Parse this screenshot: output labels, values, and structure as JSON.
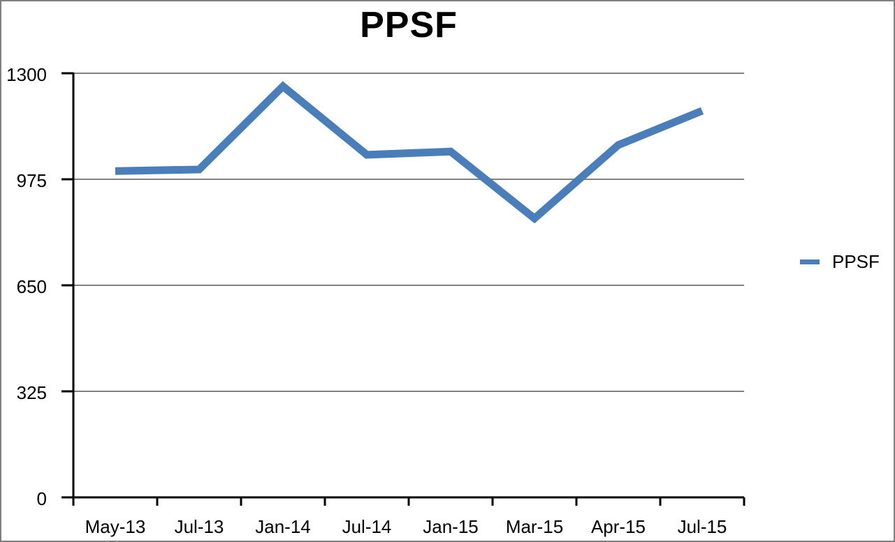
{
  "chart_data": {
    "type": "line",
    "title": "PPSF",
    "categories": [
      "May-13",
      "Jul-13",
      "Jan-14",
      "Jul-14",
      "Jan-15",
      "Mar-15",
      "Apr-15",
      "Jul-15"
    ],
    "series": [
      {
        "name": "PPSF",
        "values": [
          1000,
          1005,
          1260,
          1050,
          1060,
          855,
          1080,
          1185
        ],
        "color": "#4a7ebb"
      }
    ],
    "xlabel": "",
    "ylabel": "",
    "y_axis": {
      "min": 0,
      "max": 1300,
      "ticks": [
        0,
        325,
        650,
        975,
        1300
      ]
    },
    "grid": true,
    "legend": {
      "position": "right",
      "entries": [
        "PPSF"
      ]
    },
    "colors": {
      "line": "#4a7ebb",
      "gridline": "#808080",
      "axis": "#000000",
      "text": "#000000",
      "border": "#808080",
      "background": "#ffffff"
    }
  }
}
